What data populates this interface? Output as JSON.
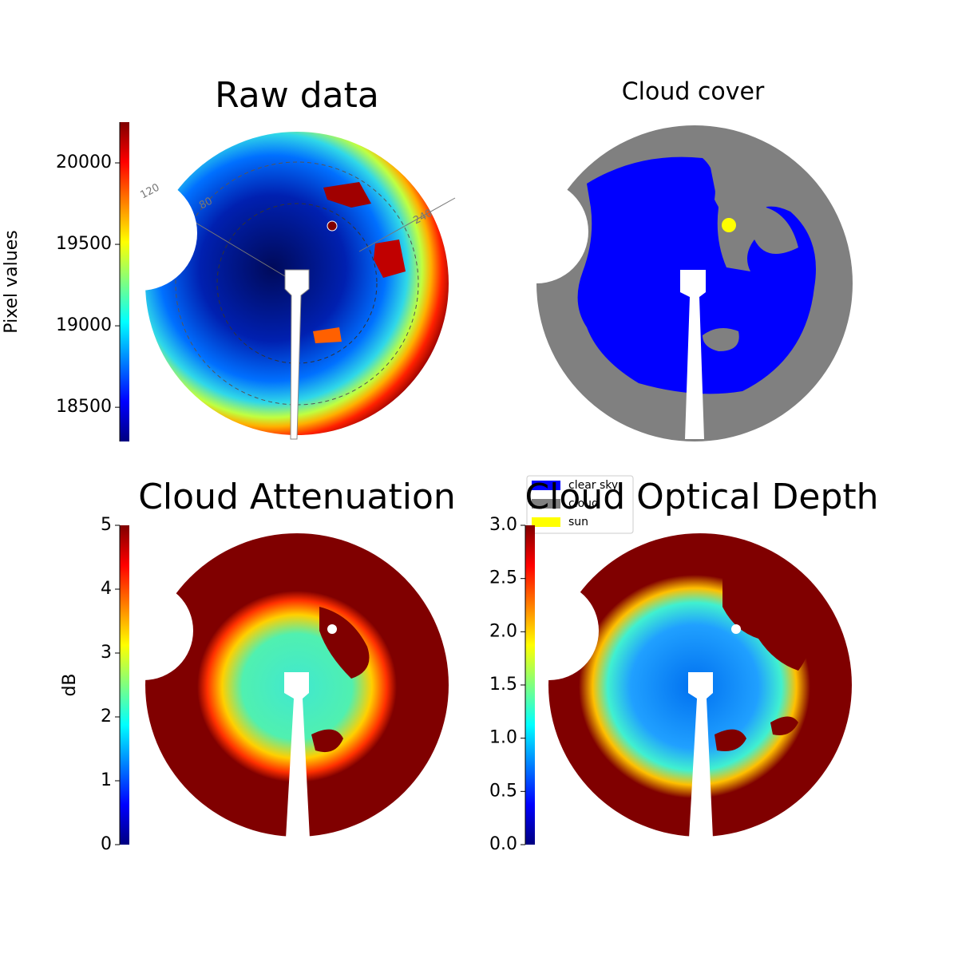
{
  "chart_data": [
    {
      "type": "image",
      "title": "Raw data",
      "cmap": "jet",
      "colorbar": {
        "label": "Pixel values",
        "lim": [
          18290,
          20250
        ],
        "ticks": [
          18500,
          19000,
          19500,
          20000
        ]
      },
      "polar_labels": [
        "120",
        "80",
        "240"
      ]
    },
    {
      "type": "image",
      "title": "Cloud cover",
      "series": [
        {
          "name": "clear sky",
          "color": "#0000ff"
        },
        {
          "name": "cloud",
          "color": "#808080"
        },
        {
          "name": "sun",
          "color": "#ffff00"
        }
      ]
    },
    {
      "type": "image",
      "title": "Cloud Attenuation",
      "cmap": "jet",
      "colorbar": {
        "label": "dB",
        "lim": [
          0,
          5
        ],
        "ticks": [
          0,
          1,
          2,
          3,
          4,
          5
        ]
      }
    },
    {
      "type": "image",
      "title": "Cloud Optical Depth",
      "cmap": "jet",
      "colorbar": {
        "lim": [
          0,
          3
        ],
        "ticks": [
          {
            "value": 0,
            "label": "0.0"
          },
          0.5,
          {
            "value": 1,
            "label": "1.0"
          },
          1.5,
          {
            "value": 2,
            "label": "2.0"
          },
          2.5,
          {
            "value": 3,
            "label": "3.0"
          }
        ]
      }
    }
  ]
}
